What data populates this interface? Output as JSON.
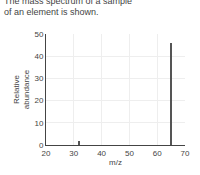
{
  "chart_data": {
    "type": "bar",
    "title": "The mass spectrum of a sample of an element is shown.",
    "xlabel": "m/z",
    "ylabel": "Relative\nabundance",
    "x": [
      32,
      65
    ],
    "values": [
      2.0,
      46
    ],
    "color": "#555555",
    "xlim": [
      20,
      70
    ],
    "ylim": [
      0,
      50
    ],
    "xticks": [
      20,
      30,
      40,
      50,
      60,
      70
    ],
    "yticks": [
      0,
      10,
      20,
      30,
      40,
      50
    ],
    "grid": true
  }
}
